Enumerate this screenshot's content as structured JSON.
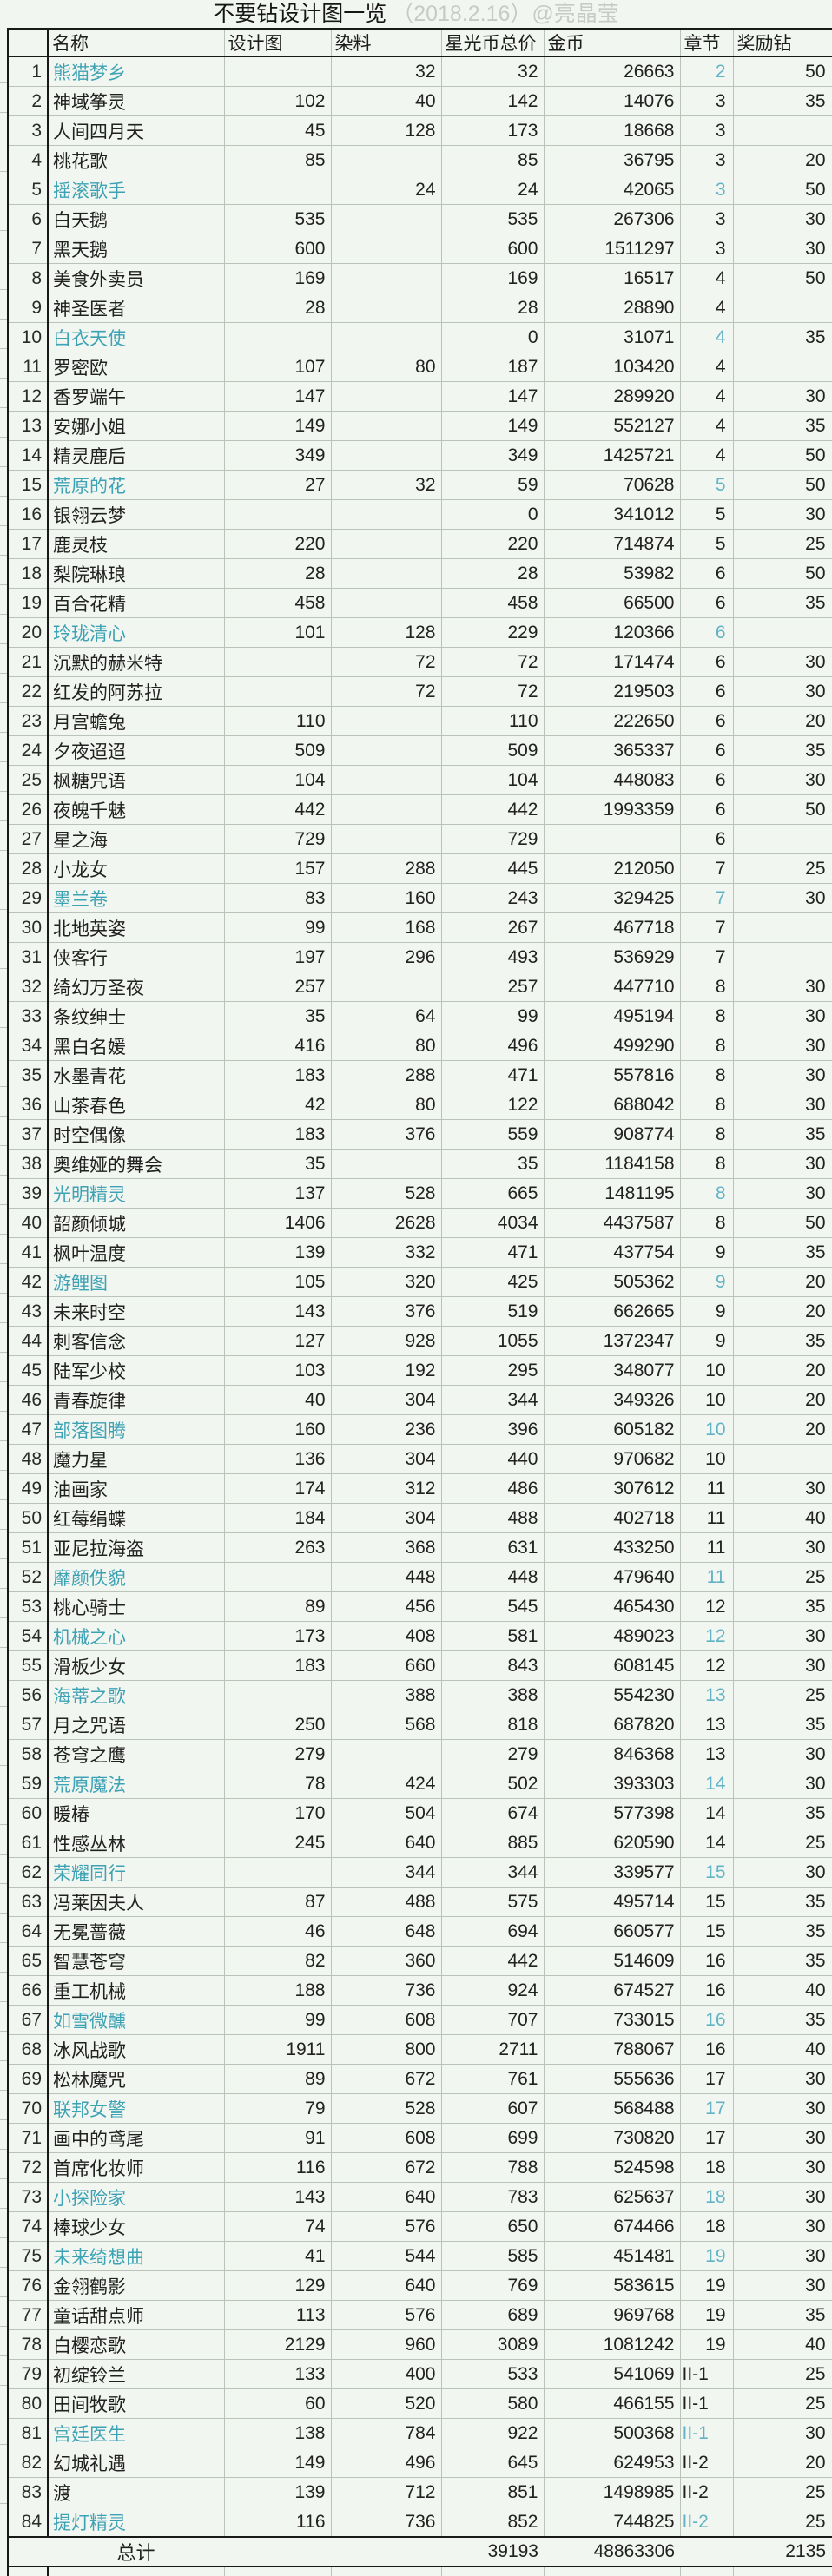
{
  "title": {
    "main": "不要钻设计图一览",
    "meta": "（2018.2.16）@亮晶莹"
  },
  "colors": {
    "accent_teal": "#3da2b4",
    "chapter_teal": "#62b3c5",
    "grid_line": "#b9c3ba",
    "dark_border": "#191919",
    "muted_title": "#c7cac6",
    "background": "#f2f6f0"
  },
  "table": {
    "headers": {
      "index": "",
      "name": "名称",
      "design": "设计图",
      "dye": "染料",
      "star_total": "星光币总价",
      "gold": "金币",
      "chapter": "章节",
      "reward": "奖励钻"
    },
    "rows": [
      [
        "1",
        "熊猫梦乡",
        "",
        "32",
        "32",
        "26663",
        "2",
        "50",
        1
      ],
      [
        "2",
        "神域筝灵",
        "102",
        "40",
        "142",
        "14076",
        "3",
        "35",
        0
      ],
      [
        "3",
        "人间四月天",
        "45",
        "128",
        "173",
        "18668",
        "3",
        "",
        0
      ],
      [
        "4",
        "桃花歌",
        "85",
        "",
        "85",
        "36795",
        "3",
        "20",
        0
      ],
      [
        "5",
        "摇滚歌手",
        "",
        "24",
        "24",
        "42065",
        "3",
        "50",
        1
      ],
      [
        "6",
        "白天鹅",
        "535",
        "",
        "535",
        "267306",
        "3",
        "30",
        0
      ],
      [
        "7",
        "黑天鹅",
        "600",
        "",
        "600",
        "1511297",
        "3",
        "30",
        0
      ],
      [
        "8",
        "美食外卖员",
        "169",
        "",
        "169",
        "16517",
        "4",
        "50",
        0
      ],
      [
        "9",
        "神圣医者",
        "28",
        "",
        "28",
        "28890",
        "4",
        "",
        0
      ],
      [
        "10",
        "白衣天使",
        "",
        "",
        "0",
        "31071",
        "4",
        "35",
        1
      ],
      [
        "11",
        "罗密欧",
        "107",
        "80",
        "187",
        "103420",
        "4",
        "",
        0
      ],
      [
        "12",
        "香罗端午",
        "147",
        "",
        "147",
        "289920",
        "4",
        "30",
        0
      ],
      [
        "13",
        "安娜小姐",
        "149",
        "",
        "149",
        "552127",
        "4",
        "35",
        0
      ],
      [
        "14",
        "精灵鹿后",
        "349",
        "",
        "349",
        "1425721",
        "4",
        "50",
        0
      ],
      [
        "15",
        "荒原的花",
        "27",
        "32",
        "59",
        "70628",
        "5",
        "50",
        1
      ],
      [
        "16",
        "银翎云梦",
        "",
        "",
        "0",
        "341012",
        "5",
        "30",
        0
      ],
      [
        "17",
        "鹿灵枝",
        "220",
        "",
        "220",
        "714874",
        "5",
        "25",
        0
      ],
      [
        "18",
        "梨院琳琅",
        "28",
        "",
        "28",
        "53982",
        "6",
        "50",
        0
      ],
      [
        "19",
        "百合花精",
        "458",
        "",
        "458",
        "66500",
        "6",
        "35",
        0
      ],
      [
        "20",
        "玲珑清心",
        "101",
        "128",
        "229",
        "120366",
        "6",
        "",
        1
      ],
      [
        "21",
        "沉默的赫米特",
        "",
        "72",
        "72",
        "171474",
        "6",
        "30",
        0
      ],
      [
        "22",
        "红发的阿苏拉",
        "",
        "72",
        "72",
        "219503",
        "6",
        "30",
        0
      ],
      [
        "23",
        "月宫蟾兔",
        "110",
        "",
        "110",
        "222650",
        "6",
        "20",
        0
      ],
      [
        "24",
        "夕夜迢迢",
        "509",
        "",
        "509",
        "365337",
        "6",
        "35",
        0
      ],
      [
        "25",
        "枫糖咒语",
        "104",
        "",
        "104",
        "448083",
        "6",
        "30",
        0
      ],
      [
        "26",
        "夜魄千魅",
        "442",
        "",
        "442",
        "1993359",
        "6",
        "50",
        0
      ],
      [
        "27",
        "星之海",
        "729",
        "",
        "729",
        "",
        "6",
        "",
        0
      ],
      [
        "28",
        "小龙女",
        "157",
        "288",
        "445",
        "212050",
        "7",
        "25",
        0
      ],
      [
        "29",
        "墨兰卷",
        "83",
        "160",
        "243",
        "329425",
        "7",
        "30",
        1
      ],
      [
        "30",
        "北地英姿",
        "99",
        "168",
        "267",
        "467718",
        "7",
        "",
        0
      ],
      [
        "31",
        "侠客行",
        "197",
        "296",
        "493",
        "536929",
        "7",
        "",
        0
      ],
      [
        "32",
        "绮幻万圣夜",
        "257",
        "",
        "257",
        "447710",
        "8",
        "30",
        0
      ],
      [
        "33",
        "条纹绅士",
        "35",
        "64",
        "99",
        "495194",
        "8",
        "30",
        0
      ],
      [
        "34",
        "黑白名媛",
        "416",
        "80",
        "496",
        "499290",
        "8",
        "30",
        0
      ],
      [
        "35",
        "水墨青花",
        "183",
        "288",
        "471",
        "557816",
        "8",
        "30",
        0
      ],
      [
        "36",
        "山茶春色",
        "42",
        "80",
        "122",
        "688042",
        "8",
        "30",
        0
      ],
      [
        "37",
        "时空偶像",
        "183",
        "376",
        "559",
        "908774",
        "8",
        "35",
        0
      ],
      [
        "38",
        "奥维娅的舞会",
        "35",
        "",
        "35",
        "1184158",
        "8",
        "30",
        0
      ],
      [
        "39",
        "光明精灵",
        "137",
        "528",
        "665",
        "1481195",
        "8",
        "30",
        1
      ],
      [
        "40",
        "韶颜倾城",
        "1406",
        "2628",
        "4034",
        "4437587",
        "8",
        "50",
        0
      ],
      [
        "41",
        "枫叶温度",
        "139",
        "332",
        "471",
        "437754",
        "9",
        "35",
        0
      ],
      [
        "42",
        "游鲤图",
        "105",
        "320",
        "425",
        "505362",
        "9",
        "20",
        1
      ],
      [
        "43",
        "未来时空",
        "143",
        "376",
        "519",
        "662665",
        "9",
        "20",
        0
      ],
      [
        "44",
        "刺客信念",
        "127",
        "928",
        "1055",
        "1372347",
        "9",
        "35",
        0
      ],
      [
        "45",
        "陆军少校",
        "103",
        "192",
        "295",
        "348077",
        "10",
        "20",
        0
      ],
      [
        "46",
        "青春旋律",
        "40",
        "304",
        "344",
        "349326",
        "10",
        "20",
        0
      ],
      [
        "47",
        "部落图腾",
        "160",
        "236",
        "396",
        "605182",
        "10",
        "20",
        1
      ],
      [
        "48",
        "魔力星",
        "136",
        "304",
        "440",
        "970682",
        "10",
        "",
        0
      ],
      [
        "49",
        "油画家",
        "174",
        "312",
        "486",
        "307612",
        "11",
        "30",
        0
      ],
      [
        "50",
        "红莓绢蝶",
        "184",
        "304",
        "488",
        "402718",
        "11",
        "40",
        0
      ],
      [
        "51",
        "亚尼拉海盗",
        "263",
        "368",
        "631",
        "433250",
        "11",
        "30",
        0
      ],
      [
        "52",
        "靡颜佚貌",
        "",
        "448",
        "448",
        "479640",
        "11",
        "25",
        1
      ],
      [
        "53",
        "桃心骑士",
        "89",
        "456",
        "545",
        "465430",
        "12",
        "35",
        0
      ],
      [
        "54",
        "机械之心",
        "173",
        "408",
        "581",
        "489023",
        "12",
        "30",
        1
      ],
      [
        "55",
        "滑板少女",
        "183",
        "660",
        "843",
        "608145",
        "12",
        "30",
        0
      ],
      [
        "56",
        "海蒂之歌",
        "",
        "388",
        "388",
        "554230",
        "13",
        "25",
        1
      ],
      [
        "57",
        "月之咒语",
        "250",
        "568",
        "818",
        "687820",
        "13",
        "35",
        0
      ],
      [
        "58",
        "苍穹之鹰",
        "279",
        "",
        "279",
        "846368",
        "13",
        "30",
        0
      ],
      [
        "59",
        "荒原魔法",
        "78",
        "424",
        "502",
        "393303",
        "14",
        "30",
        1
      ],
      [
        "60",
        "暖椿",
        "170",
        "504",
        "674",
        "577398",
        "14",
        "35",
        0
      ],
      [
        "61",
        "性感丛林",
        "245",
        "640",
        "885",
        "620590",
        "14",
        "25",
        0
      ],
      [
        "62",
        "荣耀同行",
        "",
        "344",
        "344",
        "339577",
        "15",
        "30",
        1
      ],
      [
        "63",
        "冯莱因夫人",
        "87",
        "488",
        "575",
        "495714",
        "15",
        "35",
        0
      ],
      [
        "64",
        "无冕蔷薇",
        "46",
        "648",
        "694",
        "660577",
        "15",
        "35",
        0
      ],
      [
        "65",
        "智慧苍穹",
        "82",
        "360",
        "442",
        "514609",
        "16",
        "35",
        0
      ],
      [
        "66",
        "重工机械",
        "188",
        "736",
        "924",
        "674527",
        "16",
        "40",
        0
      ],
      [
        "67",
        "如雪微醺",
        "99",
        "608",
        "707",
        "733015",
        "16",
        "35",
        1
      ],
      [
        "68",
        "冰风战歌",
        "1911",
        "800",
        "2711",
        "788067",
        "16",
        "40",
        0
      ],
      [
        "69",
        "松林魔咒",
        "89",
        "672",
        "761",
        "555636",
        "17",
        "30",
        0
      ],
      [
        "70",
        "联邦女警",
        "79",
        "528",
        "607",
        "568488",
        "17",
        "30",
        1
      ],
      [
        "71",
        "画中的鸢尾",
        "91",
        "608",
        "699",
        "730820",
        "17",
        "30",
        0
      ],
      [
        "72",
        "首席化妆师",
        "116",
        "672",
        "788",
        "524598",
        "18",
        "30",
        0
      ],
      [
        "73",
        "小探险家",
        "143",
        "640",
        "783",
        "625637",
        "18",
        "30",
        1
      ],
      [
        "74",
        "棒球少女",
        "74",
        "576",
        "650",
        "674466",
        "18",
        "30",
        0
      ],
      [
        "75",
        "未来绮想曲",
        "41",
        "544",
        "585",
        "451481",
        "19",
        "30",
        1
      ],
      [
        "76",
        "金翎鹤影",
        "129",
        "640",
        "769",
        "583615",
        "19",
        "30",
        0
      ],
      [
        "77",
        "童话甜点师",
        "113",
        "576",
        "689",
        "969768",
        "19",
        "35",
        0
      ],
      [
        "78",
        "白樱恋歌",
        "2129",
        "960",
        "3089",
        "1081242",
        "19",
        "40",
        0
      ],
      [
        "79",
        "初绽铃兰",
        "133",
        "400",
        "533",
        "541069",
        "II-1",
        "25",
        0
      ],
      [
        "80",
        "田间牧歌",
        "60",
        "520",
        "580",
        "466155",
        "II-1",
        "25",
        0
      ],
      [
        "81",
        "宫廷医生",
        "138",
        "784",
        "922",
        "500368",
        "II-1",
        "30",
        1
      ],
      [
        "82",
        "幻城礼遇",
        "149",
        "496",
        "645",
        "624953",
        "II-2",
        "20",
        0
      ],
      [
        "83",
        "渡",
        "139",
        "712",
        "851",
        "1498985",
        "II-2",
        "25",
        0
      ],
      [
        "84",
        "提灯精灵",
        "116",
        "736",
        "852",
        "744825",
        "II-2",
        "25",
        1
      ]
    ],
    "total_row": {
      "label": "总计",
      "star_total": "39193",
      "gold": "48863306",
      "reward": "2135"
    }
  }
}
